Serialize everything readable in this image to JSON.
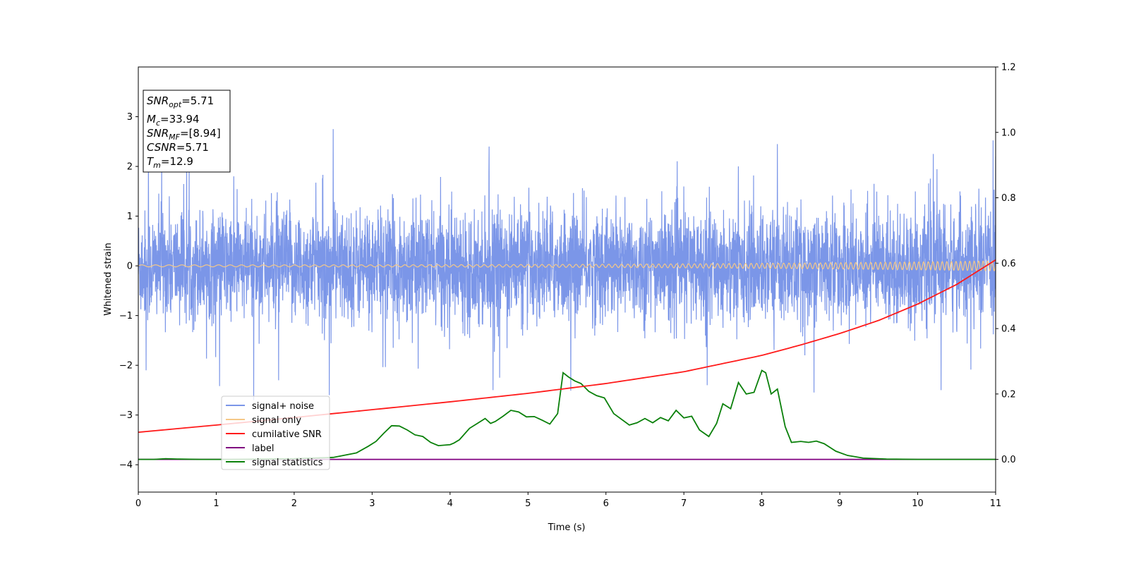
{
  "chart_data": {
    "type": "line",
    "xlabel": "Time (s)",
    "ylabel": "Whitened strain",
    "xlim": [
      0,
      11
    ],
    "ylim_left": [
      -4.55,
      4.0
    ],
    "ylim_right": [
      -0.1,
      1.2
    ],
    "x_ticks": [
      0,
      1,
      2,
      3,
      4,
      5,
      6,
      7,
      8,
      9,
      10,
      11
    ],
    "y_ticks_left": [
      -4,
      -3,
      -2,
      -1,
      0,
      1,
      2,
      3
    ],
    "y_ticks_right": [
      0.0,
      0.2,
      0.4,
      0.6,
      0.8,
      1.0,
      1.2
    ],
    "y_tick_labels_left": [
      "−4",
      "−3",
      "−2",
      "−1",
      "0",
      "1",
      "2",
      "3"
    ],
    "y_tick_labels_right": [
      "0.0",
      "0.2",
      "0.4",
      "0.6",
      "0.8",
      "1.0",
      "1.2"
    ],
    "grid": false,
    "legend_position": "lower-left",
    "colors": {
      "signal_noise": "#7b96e8",
      "signal_only": "#f5c887",
      "cumulative_snr": "#ff1a1a",
      "label": "#800080",
      "signal_statistics": "#0a800a"
    },
    "info_box": {
      "snr_opt": "5.71",
      "mc": "33.94",
      "snr_mf": "[8.94]",
      "csnr": "5.71",
      "tm": "12.9"
    },
    "series": [
      {
        "name": "signal+ noise",
        "axis": "left",
        "style": "noise",
        "noise_std": 0.55,
        "peaks": [
          [
            0.13,
            2.3
          ],
          [
            0.3,
            2.2
          ],
          [
            2.5,
            2.75
          ],
          [
            4.5,
            2.4
          ],
          [
            7.7,
            2.0
          ],
          [
            8.2,
            2.45
          ],
          [
            10.2,
            2.25
          ],
          [
            2.45,
            -2.6
          ],
          [
            4.55,
            -2.5
          ],
          [
            1.8,
            -2.3
          ],
          [
            10.3,
            -2.5
          ],
          [
            0.1,
            -2.1
          ],
          [
            7.3,
            -2.4
          ],
          [
            11.0,
            2.2
          ]
        ]
      },
      {
        "name": "signal only",
        "axis": "left",
        "style": "chirp",
        "amplitude_start": 0.02,
        "amplitude_end": 0.1
      },
      {
        "name": "cumilative SNR",
        "axis": "right",
        "x": [
          0,
          1,
          2,
          3,
          4,
          5,
          6,
          7,
          8,
          8.5,
          9,
          9.5,
          10,
          10.5,
          11
        ],
        "values": [
          0.083,
          0.105,
          0.128,
          0.152,
          0.176,
          0.202,
          0.232,
          0.268,
          0.318,
          0.35,
          0.385,
          0.425,
          0.475,
          0.535,
          0.61
        ]
      },
      {
        "name": "label",
        "axis": "right",
        "x": [
          0,
          11
        ],
        "values": [
          0.0,
          0.0
        ]
      },
      {
        "name": "signal statistics",
        "axis": "right",
        "x": [
          0,
          0.2,
          0.35,
          0.5,
          0.8,
          1.2,
          1.6,
          2.0,
          2.5,
          2.8,
          2.95,
          3.05,
          3.15,
          3.25,
          3.35,
          3.45,
          3.55,
          3.65,
          3.75,
          3.85,
          4.0,
          4.05,
          4.12,
          4.25,
          4.35,
          4.45,
          4.52,
          4.58,
          4.68,
          4.78,
          4.88,
          4.98,
          5.08,
          5.18,
          5.28,
          5.38,
          5.45,
          5.52,
          5.6,
          5.68,
          5.78,
          5.88,
          5.98,
          6.1,
          6.3,
          6.4,
          6.5,
          6.6,
          6.7,
          6.8,
          6.9,
          7.0,
          7.1,
          7.2,
          7.32,
          7.42,
          7.5,
          7.6,
          7.7,
          7.8,
          7.9,
          8.0,
          8.05,
          8.12,
          8.2,
          8.3,
          8.38,
          8.5,
          8.6,
          8.7,
          8.8,
          8.95,
          9.1,
          9.3,
          9.6,
          10.0,
          11.0
        ],
        "values": [
          0.0,
          0.0,
          0.002,
          0.001,
          0.0,
          0.0,
          0.001,
          0.002,
          0.006,
          0.02,
          0.04,
          0.055,
          0.08,
          0.103,
          0.102,
          0.09,
          0.075,
          0.07,
          0.052,
          0.042,
          0.045,
          0.05,
          0.06,
          0.095,
          0.11,
          0.125,
          0.11,
          0.116,
          0.132,
          0.15,
          0.145,
          0.13,
          0.131,
          0.12,
          0.108,
          0.14,
          0.265,
          0.252,
          0.24,
          0.232,
          0.208,
          0.195,
          0.188,
          0.14,
          0.105,
          0.112,
          0.125,
          0.112,
          0.128,
          0.118,
          0.15,
          0.127,
          0.132,
          0.09,
          0.07,
          0.11,
          0.17,
          0.155,
          0.235,
          0.2,
          0.205,
          0.272,
          0.265,
          0.2,
          0.215,
          0.1,
          0.052,
          0.055,
          0.052,
          0.056,
          0.048,
          0.025,
          0.012,
          0.004,
          0.001,
          0.0,
          0.0
        ]
      }
    ]
  }
}
